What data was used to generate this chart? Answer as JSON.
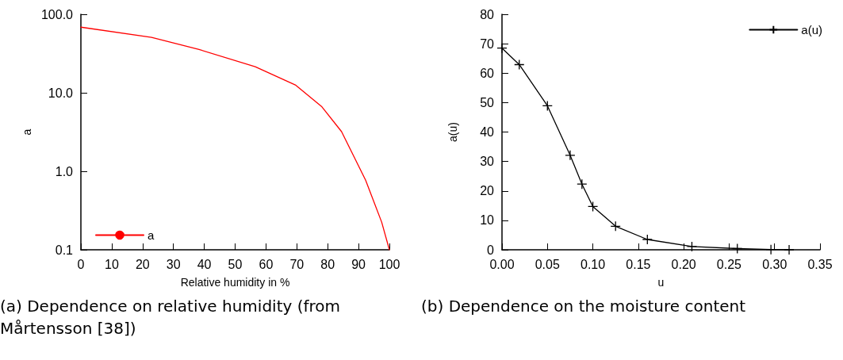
{
  "chart_data": [
    {
      "type": "line",
      "xlabel": "Relative humidity in %",
      "ylabel": "a",
      "log": "y",
      "xlim": [
        0,
        100
      ],
      "xticks": [
        0,
        10,
        20,
        30,
        40,
        50,
        60,
        70,
        80,
        90,
        100
      ],
      "ylim": [
        0.1,
        100
      ],
      "yticks": [
        {
          "value": 0.1,
          "label": "0.1"
        },
        {
          "value": 1,
          "label": "1.0"
        },
        {
          "value": 10,
          "label": "10.0"
        },
        {
          "value": 100,
          "label": "100.0"
        }
      ],
      "grid": false,
      "legend": "bottom left",
      "marker": "none",
      "line_style": "solid",
      "series": [
        {
          "name": "a",
          "color": "#ff0000",
          "x": [
            0,
            22.9,
            38.3,
            56.5,
            69.5,
            78,
            84.5,
            92.3,
            97.5,
            100
          ],
          "values": [
            68.5,
            50.7,
            35.6,
            21.5,
            12.6,
            6.7,
            3.2,
            0.77,
            0.225,
            0.1
          ]
        }
      ],
      "annotations": [
        "(a) Dependence on relative humidity (from Mårtensson [38])"
      ]
    },
    {
      "type": "line",
      "xlabel": "u",
      "ylabel": "a(u)",
      "xlim": [
        0,
        0.35
      ],
      "xticks": [
        {
          "value": 0,
          "label": "0.00"
        },
        {
          "value": 0.05,
          "label": "0.05"
        },
        {
          "value": 0.1,
          "label": "0.10"
        },
        {
          "value": 0.15,
          "label": "0.15"
        },
        {
          "value": 0.2,
          "label": "0.20"
        },
        {
          "value": 0.25,
          "label": "0.25"
        },
        {
          "value": 0.3,
          "label": "0.30"
        },
        {
          "value": 0.35,
          "label": "0.35"
        }
      ],
      "ylim": [
        0,
        80
      ],
      "yticks": [
        0,
        10,
        20,
        30,
        40,
        50,
        60,
        70,
        80
      ],
      "grid": false,
      "legend": "top right",
      "marker": "cross",
      "line_style": "solid",
      "series": [
        {
          "name": "a(u)",
          "color": "#000000",
          "x": [
            0,
            0.019,
            0.05,
            0.075,
            0.088,
            0.1,
            0.125,
            0.16,
            0.209,
            0.259,
            0.296,
            0.316
          ],
          "values": [
            68.5,
            62.9,
            48.9,
            32.1,
            22.3,
            14.7,
            8.0,
            3.5,
            1.1,
            0.4,
            0.1,
            0.0
          ]
        }
      ],
      "annotations": [
        "(b) Dependence on the moisture content"
      ]
    }
  ]
}
